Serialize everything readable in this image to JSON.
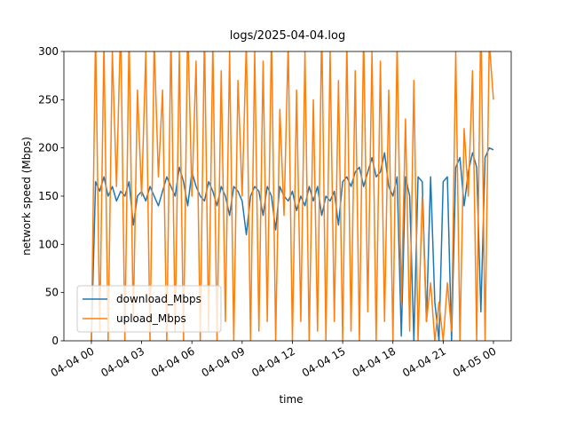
{
  "chart_data": {
    "type": "line",
    "title": "logs/2025-04-04.log",
    "x_label": "time",
    "y_label": "network speed (Mbps)",
    "x": [
      0,
      0.25,
      0.5,
      0.75,
      1,
      1.25,
      1.5,
      1.75,
      2,
      2.25,
      2.5,
      2.75,
      3,
      3.25,
      3.5,
      3.75,
      4,
      4.25,
      4.5,
      4.75,
      5,
      5.25,
      5.5,
      5.75,
      6,
      6.25,
      6.5,
      6.75,
      7,
      7.25,
      7.5,
      7.75,
      8,
      8.25,
      8.5,
      8.75,
      9,
      9.25,
      9.5,
      9.75,
      10,
      10.25,
      10.5,
      10.75,
      11,
      11.25,
      11.5,
      11.75,
      12,
      12.25,
      12.5,
      12.75,
      13,
      13.25,
      13.5,
      13.75,
      14,
      14.25,
      14.5,
      14.75,
      15,
      15.25,
      15.5,
      15.75,
      16,
      16.25,
      16.5,
      16.75,
      17,
      17.25,
      17.5,
      17.75,
      18,
      18.25,
      18.5,
      18.75,
      19,
      19.25,
      19.5,
      19.75,
      20,
      20.25,
      20.5,
      20.75,
      21,
      21.25,
      21.5,
      21.75,
      22,
      22.25,
      22.5,
      22.75,
      23,
      23.25,
      23.5,
      23.75,
      24
    ],
    "series": [
      {
        "name": "download_Mbps",
        "color": "#1f77b4",
        "values": [
          0,
          165,
          155,
          170,
          150,
          160,
          145,
          155,
          150,
          165,
          120,
          150,
          155,
          145,
          160,
          150,
          140,
          155,
          170,
          160,
          150,
          180,
          165,
          140,
          175,
          160,
          150,
          145,
          165,
          155,
          140,
          160,
          150,
          130,
          160,
          155,
          145,
          110,
          150,
          160,
          155,
          130,
          160,
          150,
          115,
          160,
          150,
          145,
          155,
          135,
          150,
          140,
          160,
          145,
          160,
          130,
          150,
          145,
          155,
          120,
          165,
          170,
          160,
          175,
          180,
          160,
          175,
          190,
          170,
          175,
          195,
          160,
          150,
          170,
          5,
          170,
          150,
          0,
          170,
          165,
          20,
          170,
          40,
          0,
          165,
          170,
          0,
          180,
          190,
          140,
          175,
          195,
          180,
          30,
          190,
          200,
          198
        ]
      },
      {
        "name": "upload_Mbps",
        "color": "#ff7f0e",
        "values": [
          0,
          320,
          10,
          310,
          0,
          300,
          160,
          330,
          0,
          320,
          20,
          260,
          150,
          300,
          0,
          310,
          170,
          260,
          0,
          320,
          10,
          300,
          0,
          330,
          150,
          290,
          0,
          320,
          10,
          310,
          0,
          280,
          20,
          300,
          0,
          270,
          150,
          310,
          0,
          300,
          10,
          290,
          20,
          320,
          0,
          240,
          130,
          310,
          0,
          260,
          20,
          300,
          0,
          250,
          10,
          330,
          0,
          300,
          20,
          270,
          0,
          310,
          10,
          280,
          0,
          320,
          30,
          300,
          0,
          290,
          20,
          260,
          0,
          310,
          40,
          230,
          10,
          270,
          0,
          150,
          20,
          60,
          0,
          40,
          0,
          60,
          10,
          300,
          0,
          220,
          150,
          280,
          0,
          340,
          0,
          310,
          250
        ]
      }
    ],
    "xlim": [
      -1.64,
      25.06
    ],
    "xticks": [
      {
        "value": 0,
        "label": "04-04 00"
      },
      {
        "value": 3,
        "label": "04-04 03"
      },
      {
        "value": 6,
        "label": "04-04 06"
      },
      {
        "value": 9,
        "label": "04-04 09"
      },
      {
        "value": 12,
        "label": "04-04 12"
      },
      {
        "value": 15,
        "label": "04-04 15"
      },
      {
        "value": 18,
        "label": "04-04 18"
      },
      {
        "value": 21,
        "label": "04-04 21"
      },
      {
        "value": 24,
        "label": "04-05 00"
      }
    ],
    "ylim": [
      0,
      300
    ],
    "yticks": [
      0,
      50,
      100,
      150,
      200,
      250,
      300
    ],
    "legend": "lower left",
    "grid": false
  }
}
